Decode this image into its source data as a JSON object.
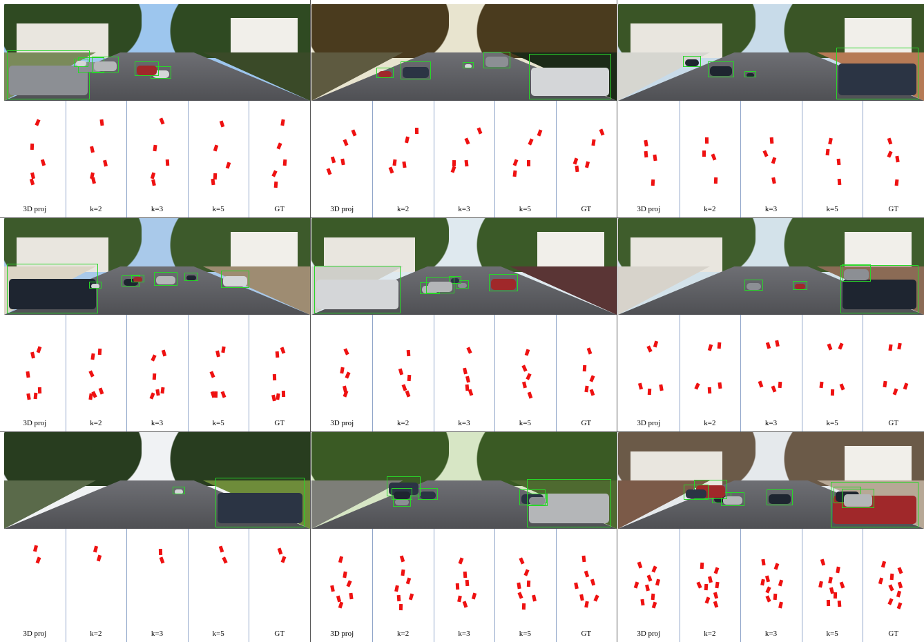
{
  "figure": {
    "panel_labels": [
      "3D proj",
      "k=2",
      "k=3",
      "k=5",
      "GT"
    ],
    "colors": {
      "detection_box": "#29d629",
      "bev_marker": "#ee1111",
      "panel_separator": "#8fa5c9"
    },
    "examples": [
      {
        "scene": {
          "sky": "#9dc6ee",
          "trees": "#2f4a22",
          "side_left": "#7a8a5a",
          "side_right": "#3a4a28",
          "houses": true
        },
        "boxes": 6
      },
      {
        "scene": {
          "sky": "#e8e4cf",
          "trees": "#4a3b1e",
          "side_left": "#5e5a40",
          "side_right": "#1c2a18",
          "houses": false
        },
        "boxes": 5
      },
      {
        "scene": {
          "sky": "#c8dbe9",
          "trees": "#3a5526",
          "side_left": "#d6d6d0",
          "side_right": "#b67a55",
          "houses": true
        },
        "boxes": 4
      },
      {
        "scene": {
          "sky": "#a9c9ea",
          "trees": "#3d5a2b",
          "side_left": "#dcd5c5",
          "side_right": "#9e8c72",
          "houses": true
        },
        "boxes": 7
      },
      {
        "scene": {
          "sky": "#dfe9ef",
          "trees": "#3b5a28",
          "side_left": "#cfcfc9",
          "side_right": "#5a3535",
          "houses": true
        },
        "boxes": 6
      },
      {
        "scene": {
          "sky": "#d3e2ea",
          "trees": "#3f5d2c",
          "side_left": "#d7d3cb",
          "side_right": "#8b6b55",
          "houses": true
        },
        "boxes": 4
      },
      {
        "scene": {
          "sky": "#f0f2f4",
          "trees": "#283d1f",
          "side_left": "#5a6a4a",
          "side_right": "#6e8c3a",
          "houses": false
        },
        "boxes": 2
      },
      {
        "scene": {
          "sky": "#d7e6c5",
          "trees": "#3a5a24",
          "side_left": "#7d7e78",
          "side_right": "#4e6a30",
          "houses": false
        },
        "boxes": 8
      },
      {
        "scene": {
          "sky": "#e5e9ec",
          "trees": "#6b5a48",
          "side_left": "#7b5a48",
          "side_right": "#b7a896",
          "houses": true
        },
        "boxes": 9
      }
    ]
  }
}
